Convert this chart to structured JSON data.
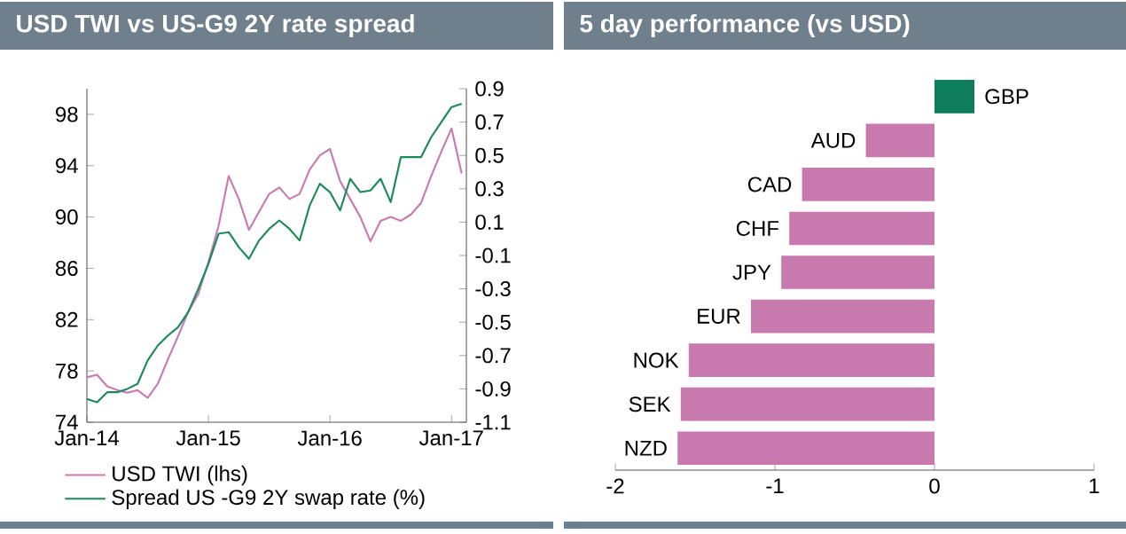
{
  "chart_data": [
    {
      "type": "line",
      "title": "USD TWI vs US-G9 2Y rate spread",
      "x": [
        "2014-01",
        "2014-02",
        "2014-03",
        "2014-04",
        "2014-05",
        "2014-06",
        "2014-07",
        "2014-08",
        "2014-09",
        "2014-10",
        "2014-11",
        "2014-12",
        "2015-01",
        "2015-02",
        "2015-03",
        "2015-04",
        "2015-05",
        "2015-06",
        "2015-07",
        "2015-08",
        "2015-09",
        "2015-10",
        "2015-11",
        "2015-12",
        "2016-01",
        "2016-02",
        "2016-03",
        "2016-04",
        "2016-05",
        "2016-06",
        "2016-07",
        "2016-08",
        "2016-09",
        "2016-10",
        "2016-11",
        "2016-12",
        "2017-01",
        "2017-02"
      ],
      "series": [
        {
          "name": "USD TWI (lhs)",
          "color": "#c77bb0",
          "values": [
            77.5,
            77.7,
            76.8,
            76.5,
            76.3,
            76.5,
            75.9,
            77.0,
            78.9,
            80.7,
            82.6,
            84.0,
            86.5,
            89.3,
            93.2,
            91.4,
            89.0,
            90.4,
            91.8,
            92.3,
            91.4,
            91.8,
            93.7,
            94.8,
            95.3,
            92.8,
            91.4,
            90.0,
            88.1,
            89.7,
            90.0,
            89.7,
            90.2,
            91.1,
            93.2,
            95.1,
            96.9,
            93.4
          ]
        },
        {
          "name": "Spread US -G9 2Y swap rate (%)",
          "color": "#1a8a5a",
          "axis": "y2",
          "values": [
            -0.96,
            -0.98,
            -0.92,
            -0.92,
            -0.9,
            -0.87,
            -0.73,
            -0.64,
            -0.58,
            -0.53,
            -0.44,
            -0.3,
            -0.15,
            0.03,
            0.04,
            -0.05,
            -0.12,
            -0.01,
            0.06,
            0.11,
            0.06,
            -0.01,
            0.2,
            0.33,
            0.28,
            0.17,
            0.36,
            0.28,
            0.29,
            0.36,
            0.22,
            0.49,
            0.49,
            0.49,
            0.61,
            0.7,
            0.79,
            0.81
          ]
        }
      ],
      "xlim": [
        "2014-01",
        "2017-02-15"
      ],
      "xticks": [
        {
          "value": "2014-01",
          "label": "Jan-14"
        },
        {
          "value": "2015-01",
          "label": "Jan-15"
        },
        {
          "value": "2016-01",
          "label": "Jan-16"
        },
        {
          "value": "2017-01",
          "label": "Jan-17"
        }
      ],
      "ylim": [
        74,
        100
      ],
      "yticks": [
        74,
        78,
        82,
        86,
        90,
        94,
        98
      ],
      "y2lim": [
        -1.1,
        0.9
      ],
      "y2ticks": [
        -1.1,
        -0.9,
        -0.7,
        -0.5,
        -0.3,
        -0.1,
        0.1,
        0.3,
        0.5,
        0.7,
        0.9
      ],
      "legend": "bottom"
    },
    {
      "type": "bar",
      "title": "5 day performance (vs USD)",
      "orientation": "horizontal",
      "categories": [
        "GBP",
        "AUD",
        "CAD",
        "CHF",
        "JPY",
        "EUR",
        "NOK",
        "SEK",
        "NZD"
      ],
      "values": [
        0.25,
        -0.43,
        -0.83,
        -0.91,
        -0.96,
        -1.15,
        -1.54,
        -1.59,
        -1.61
      ],
      "colors": [
        "#0e7d5a",
        "#c879ad",
        "#c879ad",
        "#c879ad",
        "#c879ad",
        "#c879ad",
        "#c879ad",
        "#c879ad",
        "#c879ad"
      ],
      "xlim": [
        -2,
        1
      ],
      "xticks": [
        -2,
        -1,
        0,
        1
      ]
    }
  ]
}
